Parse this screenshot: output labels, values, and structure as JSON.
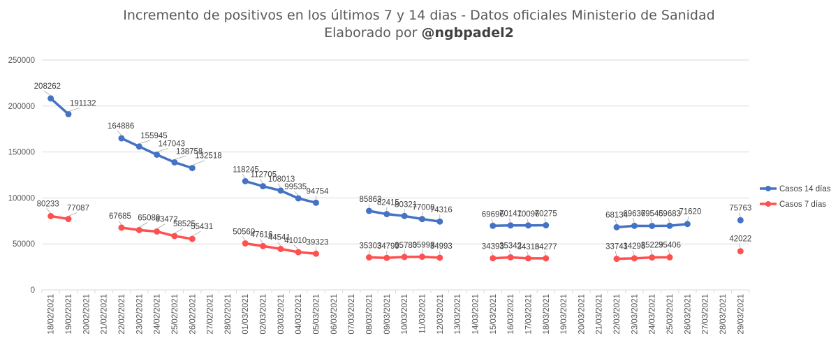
{
  "chart_data": {
    "type": "line",
    "title_line1": "Incremento de positivos en los últimos 7 y 14 dias - Datos oficiales Ministerio de Sanidad",
    "title_line2_prefix": "Elaborado por ",
    "title_line2_handle": "@ngbpadel2",
    "ylim": [
      0,
      250000
    ],
    "yticks": [
      0,
      50000,
      100000,
      150000,
      200000,
      250000
    ],
    "ytick_labels": [
      "0",
      "50000",
      "100000",
      "150000",
      "200000",
      "250000"
    ],
    "grid": true,
    "legend_position": "right",
    "categories": [
      "18/02/2021",
      "19/02/2021",
      "20/02/2021",
      "21/02/2021",
      "22/02/2021",
      "23/02/2021",
      "24/02/2021",
      "25/02/2021",
      "26/02/2021",
      "27/02/2021",
      "28/02/2021",
      "01/03/2021",
      "02/03/2021",
      "03/03/2021",
      "04/03/2021",
      "05/03/2021",
      "06/03/2021",
      "07/03/2021",
      "08/03/2021",
      "09/03/2021",
      "10/03/2021",
      "11/03/2021",
      "12/03/2021",
      "13/03/2021",
      "14/03/2021",
      "15/03/2021",
      "16/03/2021",
      "17/03/2021",
      "18/03/2021",
      "19/03/2021",
      "20/03/2021",
      "21/03/2021",
      "22/03/2021",
      "23/03/2021",
      "24/03/2021",
      "25/03/2021",
      "26/03/2021",
      "27/03/2021",
      "28/03/2021",
      "29/03/2021"
    ],
    "series": [
      {
        "name": "Casos 14 días",
        "color": "#4472c4",
        "values": [
          208262,
          191132,
          null,
          null,
          164886,
          155945,
          147043,
          138758,
          132518,
          null,
          null,
          118245,
          112705,
          108013,
          99535,
          94754,
          null,
          null,
          85863,
          82415,
          80321,
          77008,
          74316,
          null,
          null,
          69696,
          70141,
          70096,
          70275,
          null,
          null,
          null,
          68134,
          69637,
          69545,
          69683,
          71620,
          null,
          null,
          75763
        ]
      },
      {
        "name": "Casos 7 días",
        "color": "#ff5050",
        "values": [
          80233,
          77087,
          null,
          null,
          67685,
          65089,
          63472,
          58525,
          55431,
          null,
          null,
          50560,
          47616,
          44541,
          41010,
          39323,
          null,
          null,
          35303,
          34799,
          35780,
          35998,
          34993,
          null,
          null,
          34393,
          35342,
          34316,
          34277,
          null,
          null,
          null,
          33741,
          34295,
          35229,
          35406,
          null,
          null,
          null,
          42022
        ]
      }
    ]
  }
}
